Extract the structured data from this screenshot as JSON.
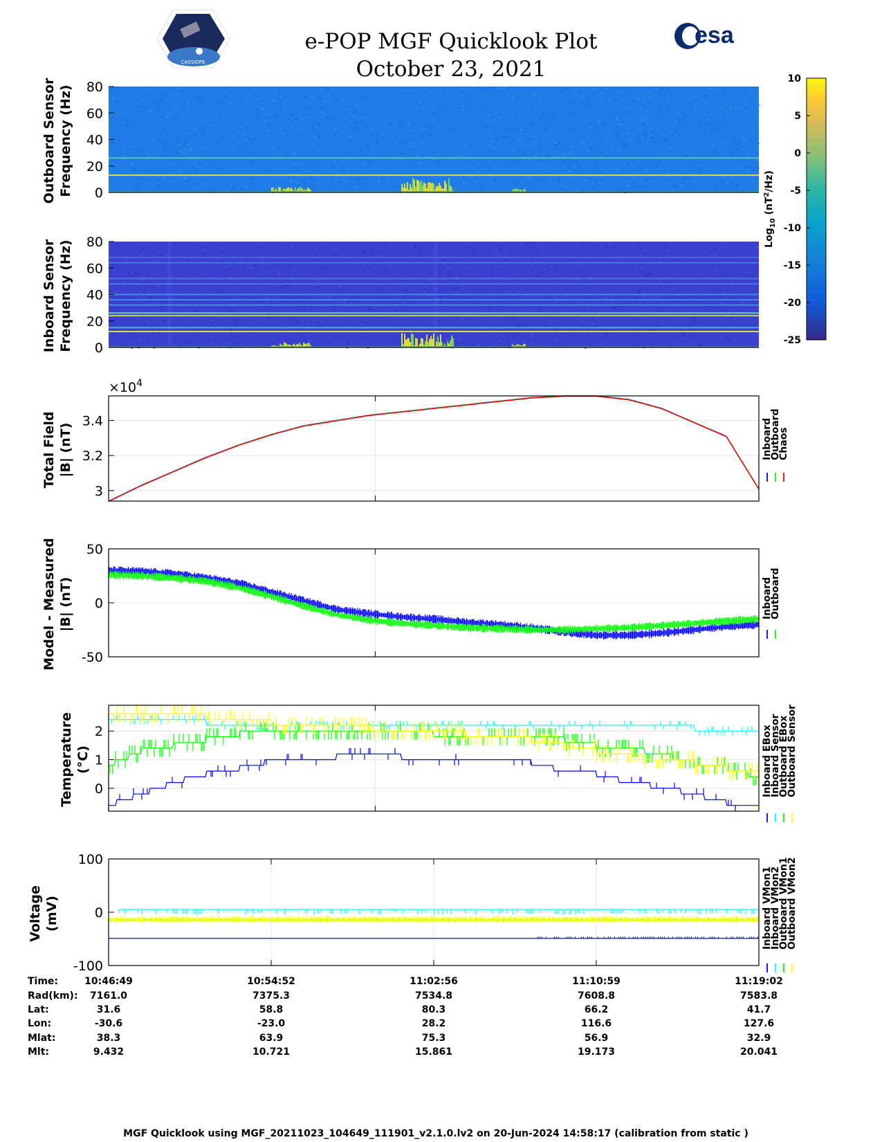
{
  "header": {
    "title": "e-POP MGF Quicklook Plot",
    "date": "October 23, 2021",
    "esa_logo_text": "esa",
    "cassiope_logo_text": "CASSIOPE"
  },
  "footer": {
    "text": "MGF Quicklook using MGF_20211023_104649_111901_v2.1.0.lv2 on 20-Jun-2024 14:58:17 (calibration from static )"
  },
  "orbit_table": {
    "row_labels": [
      "Time:",
      "Rad(km):",
      "Lat:",
      "Lon:",
      "Mlat:",
      "Mlt:"
    ],
    "columns": [
      [
        "10:46:49",
        "7161.0",
        "31.6",
        "-30.6",
        "38.3",
        "9.432"
      ],
      [
        "10:54:52",
        "7375.3",
        "58.8",
        "-23.0",
        "63.9",
        "10.721"
      ],
      [
        "11:02:56",
        "7534.8",
        "80.3",
        "28.2",
        "75.3",
        "15.861"
      ],
      [
        "11:10:59",
        "7608.8",
        "66.2",
        "116.6",
        "56.9",
        "19.173"
      ],
      [
        "11:19:02",
        "7583.8",
        "41.7",
        "127.6",
        "32.9",
        "20.041"
      ]
    ]
  },
  "colors": {
    "inboard": "#0000ff",
    "outboard": "#00ff00",
    "chaos": "#ff0000",
    "cyan": "#00ffff",
    "yellow": "#ffff00",
    "spec_outboard_bg": "#1f7be6",
    "spec_inboard_bg": "#3b3fd0"
  },
  "chart_data": [
    {
      "id": "outboard_spectrogram",
      "type": "heatmap",
      "ylabel": [
        "Outboard Sensor",
        "Frequency (Hz)"
      ],
      "ylim": [
        0,
        80
      ],
      "yticks": [
        "80",
        "60",
        "40",
        "20",
        "0"
      ],
      "yticks_values": [
        80,
        60,
        40,
        20,
        0
      ],
      "lines_hz": [
        {
          "freq": 13,
          "color": "#e8e03a"
        },
        {
          "freq": 26,
          "color": "#57c8b8"
        }
      ],
      "activity": [
        {
          "t0": 0.25,
          "t1": 0.31,
          "fmax": 3
        },
        {
          "t0": 0.45,
          "t1": 0.53,
          "fmax": 10
        },
        {
          "t0": 0.62,
          "t1": 0.64,
          "fmax": 2
        }
      ]
    },
    {
      "id": "inboard_spectrogram",
      "type": "heatmap",
      "ylabel": [
        "Inboard Sensor",
        "Frequency (Hz)"
      ],
      "ylim": [
        0,
        80
      ],
      "yticks": [
        "80",
        "60",
        "40",
        "20",
        "0"
      ],
      "yticks_values": [
        80,
        60,
        40,
        20,
        0
      ],
      "lines_hz": [
        {
          "freq": 12,
          "color": "#e8d83a"
        },
        {
          "freq": 15,
          "color": "#5aa8e8"
        },
        {
          "freq": 24,
          "color": "#c8d84a"
        },
        {
          "freq": 26,
          "color": "#6ad0b8"
        },
        {
          "freq": 32,
          "color": "#4a8ae8"
        },
        {
          "freq": 36,
          "color": "#4a8ae8"
        },
        {
          "freq": 40,
          "color": "#4a8ae8"
        },
        {
          "freq": 48,
          "color": "#4a7ae0"
        },
        {
          "freq": 52,
          "color": "#4a7ae0"
        },
        {
          "freq": 64,
          "color": "#4a7ae0"
        },
        {
          "freq": 68,
          "color": "#4a6ad8"
        }
      ],
      "activity": [
        {
          "t0": 0.25,
          "t1": 0.31,
          "fmax": 3
        },
        {
          "t0": 0.45,
          "t1": 0.53,
          "fmax": 10
        },
        {
          "t0": 0.62,
          "t1": 0.64,
          "fmax": 2
        }
      ]
    },
    {
      "id": "colorbar",
      "type": "heatmap",
      "label": "Log10 (nT^2/Hz)",
      "label_parts": [
        "Log",
        "10",
        " (nT",
        "2",
        "/Hz)"
      ],
      "range": [
        -25,
        10
      ],
      "ticks": [
        "10",
        "5",
        "0",
        "-5",
        "-10",
        "-15",
        "-20",
        "-25"
      ],
      "ticks_values": [
        10,
        5,
        0,
        -5,
        -10,
        -15,
        -20,
        -25
      ]
    },
    {
      "id": "total_field",
      "type": "line",
      "ylabel": [
        "Total Field",
        "|B| (nT)"
      ],
      "multiplier": "×10",
      "multiplier_exp": "4",
      "ylim": [
        29400,
        35400
      ],
      "yticks": [
        "3.4",
        "3.2",
        "3"
      ],
      "yticks_values": [
        34000,
        32000,
        30000
      ],
      "x": [
        0,
        0.05,
        0.1,
        0.15,
        0.2,
        0.25,
        0.3,
        0.35,
        0.4,
        0.45,
        0.5,
        0.55,
        0.6,
        0.65,
        0.7,
        0.75,
        0.8,
        0.85,
        0.9,
        0.95,
        1
      ],
      "series": [
        {
          "name": "Inboard",
          "color": "#0000ff",
          "values": [
            29400,
            30300,
            31100,
            31900,
            32600,
            33200,
            33700,
            34000,
            34300,
            34500,
            34700,
            34900,
            35100,
            35300,
            35400,
            35400,
            35200,
            34700,
            33900,
            33100,
            30100
          ]
        },
        {
          "name": "Outboard",
          "color": "#00ff00",
          "values": [
            29400,
            30300,
            31100,
            31900,
            32600,
            33200,
            33700,
            34000,
            34300,
            34500,
            34700,
            34900,
            35100,
            35300,
            35400,
            35400,
            35200,
            34700,
            33900,
            33100,
            30100
          ]
        },
        {
          "name": "Chaos",
          "color": "#ff0000",
          "values": [
            29400,
            30300,
            31100,
            31900,
            32600,
            33200,
            33700,
            34000,
            34300,
            34500,
            34700,
            34900,
            35100,
            35300,
            35400,
            35400,
            35200,
            34700,
            33900,
            33100,
            30100
          ]
        }
      ],
      "legend": [
        "Inboard",
        "Outboard",
        "Chaos"
      ],
      "grid": true
    },
    {
      "id": "model_minus_measured",
      "type": "line",
      "ylabel": [
        "Model - Measured",
        "|B| (nT)"
      ],
      "ylim": [
        -50,
        50
      ],
      "yticks": [
        "50",
        "0",
        "-50"
      ],
      "yticks_values": [
        50,
        0,
        -50
      ],
      "x": [
        0,
        0.05,
        0.1,
        0.15,
        0.2,
        0.25,
        0.3,
        0.35,
        0.4,
        0.45,
        0.5,
        0.55,
        0.6,
        0.65,
        0.7,
        0.75,
        0.8,
        0.85,
        0.9,
        0.95,
        1
      ],
      "series": [
        {
          "name": "Inboard",
          "color": "#0000ff",
          "values": [
            30,
            29,
            27,
            23,
            18,
            10,
            2,
            -6,
            -10,
            -13,
            -15,
            -18,
            -20,
            -23,
            -27,
            -30,
            -30,
            -28,
            -25,
            -22,
            -20
          ],
          "spread": 4
        },
        {
          "name": "Outboard",
          "color": "#00ff00",
          "values": [
            26,
            25,
            23,
            20,
            14,
            6,
            -3,
            -11,
            -16,
            -19,
            -21,
            -23,
            -24,
            -25,
            -25,
            -24,
            -23,
            -21,
            -19,
            -17,
            -15
          ],
          "spread": 4
        }
      ],
      "legend": [
        "Inboard",
        "Outboard"
      ],
      "grid": true
    },
    {
      "id": "temperature",
      "type": "line",
      "ylabel": [
        "Temperature",
        "(°C)"
      ],
      "ylim": [
        -0.8,
        2.9
      ],
      "yticks": [
        "2",
        "1",
        "0"
      ],
      "yticks_values": [
        2,
        1,
        0
      ],
      "x": [
        0,
        0.05,
        0.1,
        0.15,
        0.2,
        0.25,
        0.3,
        0.35,
        0.4,
        0.45,
        0.5,
        0.55,
        0.6,
        0.65,
        0.7,
        0.75,
        0.8,
        0.85,
        0.9,
        0.95,
        1
      ],
      "series": [
        {
          "name": "Inboard EBox",
          "color": "#0000ff",
          "values": [
            -0.6,
            -0.2,
            0.2,
            0.5,
            0.7,
            0.95,
            1.0,
            1.1,
            1.15,
            1.1,
            1.05,
            1.0,
            0.95,
            0.9,
            0.6,
            0.5,
            0.2,
            0.05,
            -0.2,
            -0.5,
            -0.7
          ],
          "spread": 0.2
        },
        {
          "name": "Inboard Sensor",
          "color": "#00ffff",
          "values": [
            2.4,
            2.4,
            2.4,
            2.3,
            2.2,
            2.2,
            2.2,
            2.2,
            2.2,
            2.1,
            2.2,
            2.2,
            2.2,
            2.2,
            2.2,
            2.2,
            2.2,
            2.2,
            2.1,
            2.0,
            2.0
          ],
          "spread": 0.15
        },
        {
          "name": "Outboard EBox",
          "color": "#00ff00",
          "values": [
            0.8,
            1.3,
            1.5,
            1.7,
            1.9,
            2.0,
            2.0,
            2.0,
            2.0,
            2.0,
            1.9,
            1.9,
            1.8,
            1.8,
            1.7,
            1.5,
            1.4,
            1.2,
            0.9,
            0.7,
            0.4
          ],
          "spread": 0.3
        },
        {
          "name": "Outboard Sensor",
          "color": "#ffff00",
          "values": [
            2.5,
            2.5,
            2.5,
            2.5,
            2.4,
            2.3,
            2.3,
            2.2,
            2.1,
            2.0,
            2.0,
            1.9,
            1.8,
            1.7,
            1.5,
            1.3,
            1.2,
            1.0,
            0.9,
            0.7,
            0.5
          ],
          "spread": 0.3
        }
      ],
      "legend": [
        "Inboard EBox",
        "Inboard Sensor",
        "Outboard EBox",
        "Outboard Sensor"
      ],
      "grid": true
    },
    {
      "id": "voltage",
      "type": "line",
      "ylabel": [
        "Voltage",
        "(mV)"
      ],
      "ylim": [
        -100,
        100
      ],
      "yticks": [
        "100",
        "0",
        "-100"
      ],
      "yticks_values": [
        100,
        0,
        -100
      ],
      "x": [
        0,
        0.25,
        0.5,
        0.75,
        1
      ],
      "series": [
        {
          "name": "Inboard VMon1",
          "color": "#0000ff",
          "values": [
            -49,
            -49,
            -49,
            -49,
            -47
          ],
          "spread": 2
        },
        {
          "name": "Inboard VMon2",
          "color": "#00ffff",
          "values": [
            5,
            5,
            5,
            5,
            5
          ],
          "spread": 2
        },
        {
          "name": "Outboard VMon1",
          "color": "#00ff00",
          "values": [
            -15,
            -15,
            -15,
            -15,
            -15
          ],
          "spread": 4
        },
        {
          "name": "Outboard VMon2",
          "color": "#ffff00",
          "values": [
            -15,
            -15,
            -15,
            -15,
            -15
          ],
          "spread": 8
        }
      ],
      "legend": [
        "Inboard VMon1",
        "Inboard VMon2",
        "Outboard VMon1",
        "Outboard VMon2"
      ],
      "grid": true
    }
  ]
}
